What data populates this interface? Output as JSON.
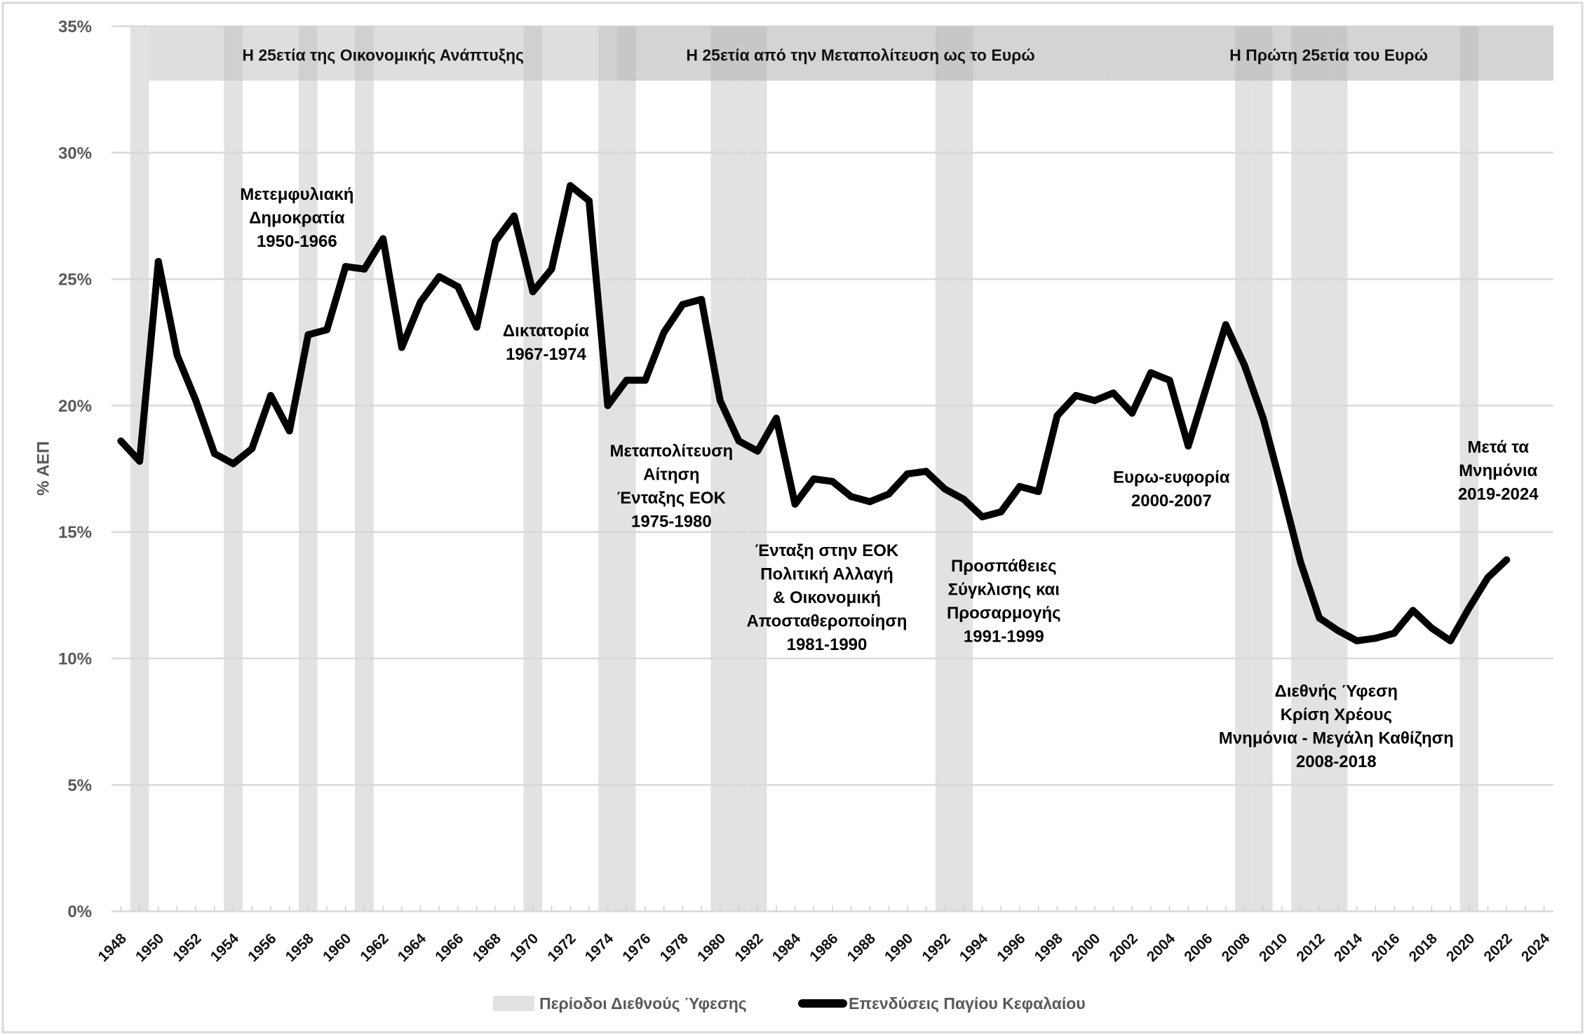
{
  "chart_data": {
    "type": "line",
    "title": "",
    "xlabel": "",
    "ylabel": "% ΑΕΠ",
    "ylim": [
      0,
      35
    ],
    "grid": true,
    "y_ticks": [
      0,
      5,
      10,
      15,
      20,
      25,
      30,
      35
    ],
    "y_tick_labels": [
      "0%",
      "5%",
      "10%",
      "15%",
      "20%",
      "25%",
      "30%",
      "35%"
    ],
    "categories": [
      1948,
      1949,
      1950,
      1951,
      1952,
      1953,
      1954,
      1955,
      1956,
      1957,
      1958,
      1959,
      1960,
      1961,
      1962,
      1963,
      1964,
      1965,
      1966,
      1967,
      1968,
      1969,
      1970,
      1971,
      1972,
      1973,
      1974,
      1975,
      1976,
      1977,
      1978,
      1979,
      1980,
      1981,
      1982,
      1983,
      1984,
      1985,
      1986,
      1987,
      1988,
      1989,
      1990,
      1991,
      1992,
      1993,
      1994,
      1995,
      1996,
      1997,
      1998,
      1999,
      2000,
      2001,
      2002,
      2003,
      2004,
      2005,
      2006,
      2007,
      2008,
      2009,
      2010,
      2011,
      2012,
      2013,
      2014,
      2015,
      2016,
      2017,
      2018,
      2019,
      2020,
      2021,
      2022,
      2023,
      2024
    ],
    "x_tick_labels": [
      "1948",
      "1950",
      "1952",
      "1954",
      "1956",
      "1958",
      "1960",
      "1962",
      "1964",
      "1966",
      "1968",
      "1970",
      "1972",
      "1974",
      "1976",
      "1978",
      "1980",
      "1982",
      "1984",
      "1986",
      "1988",
      "1990",
      "1992",
      "1994",
      "1996",
      "1998",
      "2000",
      "2002",
      "2004",
      "2006",
      "2008",
      "2010",
      "2012",
      "2014",
      "2016",
      "2018",
      "2020",
      "2022",
      "2024"
    ],
    "series": [
      {
        "name": "Επενδύσεις Παγίου Κεφαλαίου",
        "color": "#000000",
        "x": [
          1948,
          1949,
          1950,
          1951,
          1952,
          1953,
          1954,
          1955,
          1956,
          1957,
          1958,
          1959,
          1960,
          1961,
          1962,
          1963,
          1964,
          1965,
          1966,
          1967,
          1968,
          1969,
          1970,
          1971,
          1972,
          1973,
          1974,
          1975,
          1976,
          1977,
          1978,
          1979,
          1980,
          1981,
          1982,
          1983,
          1984,
          1985,
          1986,
          1987,
          1988,
          1989,
          1990,
          1991,
          1992,
          1993,
          1994,
          1995,
          1996,
          1997,
          1998,
          1999,
          2000,
          2001,
          2002,
          2003,
          2004,
          2005,
          2006,
          2007,
          2008,
          2009,
          2010,
          2011,
          2012,
          2013,
          2014,
          2015,
          2016,
          2017,
          2018,
          2019,
          2020,
          2021,
          2022
        ],
        "values": [
          18.6,
          17.8,
          25.7,
          22.0,
          20.2,
          18.1,
          17.7,
          18.3,
          20.4,
          19.0,
          22.8,
          23.0,
          25.5,
          25.4,
          26.6,
          22.3,
          24.1,
          25.1,
          24.7,
          23.1,
          26.5,
          27.5,
          24.5,
          25.4,
          28.7,
          28.1,
          20.0,
          21.0,
          21.0,
          22.9,
          24.0,
          24.2,
          20.2,
          18.6,
          18.2,
          19.5,
          16.1,
          17.1,
          17.0,
          16.4,
          16.2,
          16.5,
          17.3,
          17.4,
          16.7,
          16.3,
          15.6,
          15.8,
          16.8,
          16.6,
          19.6,
          20.4,
          20.2,
          20.5,
          19.7,
          21.3,
          21.0,
          18.4,
          20.8,
          23.2,
          21.6,
          19.5,
          16.7,
          13.8,
          11.6,
          11.1,
          10.7,
          10.8,
          11.0,
          11.9,
          11.2,
          10.7,
          12.0,
          13.2,
          13.9
        ]
      }
    ],
    "recession_periods": {
      "name": "Περίοδοι Διεθνούς Ύφεσης",
      "color": "#e2e2e2",
      "years": [
        1949,
        1954,
        1958,
        1961,
        1970,
        1974,
        1975,
        1980,
        1981,
        1982,
        1992,
        1993,
        2008,
        2009,
        2011,
        2012,
        2013,
        2020
      ]
    },
    "period_headers": [
      {
        "label": "Η 25ετία της Οικονομικής Ανάπτυξης",
        "start": 1950,
        "end": 1974,
        "y_range": [
          32.85,
          35
        ],
        "fill": "#dedede"
      },
      {
        "label": "Η 25ετία από την Μεταπολίτευση ως το Ευρώ",
        "start": 1975,
        "end": 2000,
        "y_range": [
          32.85,
          35
        ],
        "fill": "#d4d4d4"
      },
      {
        "label": "Η Πρώτη 25ετία του Ευρώ",
        "start": 2001,
        "end": 2024,
        "y_range": [
          32.85,
          35
        ],
        "fill": "#d4d4d4"
      }
    ],
    "annotations": [
      {
        "lines": [
          "Μετεμφυλιακή",
          "Δημοκρατία",
          "1950-1966"
        ],
        "x": 1957.4,
        "y": 28.35
      },
      {
        "lines": [
          "Δικτατορία",
          "1967-1974"
        ],
        "x": 1970.7,
        "y": 22.95
      },
      {
        "lines": [
          "Μεταπολίτευση",
          "Αίτηση",
          "Ένταξης ΕΟΚ",
          "1975-1980"
        ],
        "x": 1977.4,
        "y": 18.2
      },
      {
        "lines": [
          "Ένταξη στην ΕΟΚ",
          "Πολιτική Αλλαγή",
          "& Οικονομική",
          "Αποσταθεροποίηση",
          "1981-1990"
        ],
        "x": 1985.7,
        "y": 14.25
      },
      {
        "lines": [
          "Προσπάθειες",
          "Σύγκλισης και",
          "Προσαρμογής",
          "1991-1999"
        ],
        "x": 1995.15,
        "y": 13.65
      },
      {
        "lines": [
          "Ευρω-ευφορία",
          "2000-2007"
        ],
        "x": 2004.1,
        "y": 17.15
      },
      {
        "lines": [
          "Διεθνής Ύφεση",
          "Κρίση Χρέους",
          "Μνημόνια - Μεγάλη Καθίζηση",
          "2008-2018"
        ],
        "x": 2012.9,
        "y": 8.7
      },
      {
        "lines": [
          "Μετά τα",
          "Μνημόνια",
          "2019-2024"
        ],
        "x": 2021.55,
        "y": 18.35
      }
    ],
    "legend": {
      "position": "bottom",
      "items": [
        {
          "label": "Περίοδοι Διεθνούς Ύφεσης",
          "type": "band"
        },
        {
          "label": "Επενδύσεις Παγίου Κεφαλαίου",
          "type": "line"
        }
      ]
    },
    "colors": {
      "gridline": "#d9d9d9",
      "axis_text": "#595959",
      "border": "#d9d9d9"
    }
  }
}
